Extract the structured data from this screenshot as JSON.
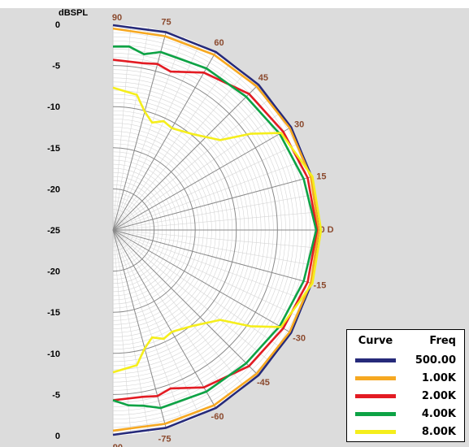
{
  "chart_data": {
    "type": "polar",
    "ylabel": "dBSPL",
    "y_ticks_left": [
      "0",
      "-5",
      "-10",
      "-15",
      "-20",
      "-25",
      "-20",
      "-15",
      "-10",
      "-5",
      "0"
    ],
    "angle_labels": [
      "90",
      "75",
      "60",
      "45",
      "30",
      "15",
      "0 D",
      "-15",
      "-30",
      "-45",
      "-60",
      "-75",
      "-90"
    ],
    "angle_values": [
      90,
      75,
      60,
      45,
      30,
      15,
      0,
      -15,
      -30,
      -45,
      -60,
      -75,
      -90
    ],
    "rlim": [
      -25,
      0
    ],
    "grid": true,
    "legend": {
      "placement": "bottom-right",
      "header_curve": "Curve",
      "header_freq": "Freq"
    },
    "series": [
      {
        "name": "500.00",
        "color": "#262a7a",
        "angles": [
          90,
          75,
          60,
          45,
          30,
          15,
          0,
          -15,
          -30,
          -45,
          -60,
          -75,
          -90
        ],
        "values": [
          -0.1,
          -0.1,
          0,
          0,
          0,
          0,
          0,
          0,
          0,
          0,
          0,
          -0.1,
          -0.1
        ]
      },
      {
        "name": "1.00K",
        "color": "#f6a821",
        "angles": [
          90,
          75,
          60,
          45,
          30,
          15,
          0,
          -15,
          -30,
          -45,
          -60,
          -75,
          -90
        ],
        "values": [
          -0.5,
          -0.6,
          -0.4,
          -0.3,
          -0.2,
          -0.1,
          0,
          -0.1,
          -0.2,
          -0.3,
          -0.4,
          -0.6,
          -0.6
        ]
      },
      {
        "name": "2.00K",
        "color": "#e31b23",
        "angles": [
          90,
          80,
          75,
          70,
          60,
          45,
          30,
          15,
          0,
          -15,
          -30,
          -45,
          -60,
          -70,
          -75,
          -80,
          -90
        ],
        "values": [
          -4.3,
          -4.4,
          -4.1,
          -4.5,
          -2.9,
          -1.6,
          -1.1,
          -0.5,
          -0.2,
          -0.5,
          -1.1,
          -1.6,
          -2.9,
          -4.5,
          -4.1,
          -4.4,
          -4.3
        ]
      },
      {
        "name": "4.00K",
        "color": "#0da345",
        "angles": [
          90,
          85,
          80,
          75,
          60,
          45,
          30,
          15,
          0,
          -15,
          -30,
          -45,
          -60,
          -75,
          -80,
          -85,
          -90
        ],
        "values": [
          -2.7,
          -2.6,
          -3.3,
          -2.6,
          -2.3,
          -2.1,
          -1.6,
          -1.0,
          -0.3,
          -1.0,
          -1.6,
          -2.1,
          -2.3,
          -2.6,
          -3.3,
          -3.6,
          -4.3
        ]
      },
      {
        "name": "8.00K",
        "color": "#f5ee1c",
        "angles": [
          90,
          80,
          75,
          70,
          65,
          60,
          50,
          40,
          35,
          30,
          15,
          0,
          -15,
          -30,
          -35,
          -40,
          -50,
          -60,
          -65,
          -70,
          -75,
          -80,
          -90
        ],
        "values": [
          -7.7,
          -8.3,
          -10.1,
          -11.1,
          -10.4,
          -10.7,
          -9.8,
          -8.0,
          -4.6,
          -1.4,
          0.1,
          0.3,
          0.1,
          -1.4,
          -4.6,
          -8.0,
          -9.8,
          -10.7,
          -10.4,
          -11.1,
          -10.1,
          -8.3,
          -7.7
        ]
      }
    ]
  }
}
